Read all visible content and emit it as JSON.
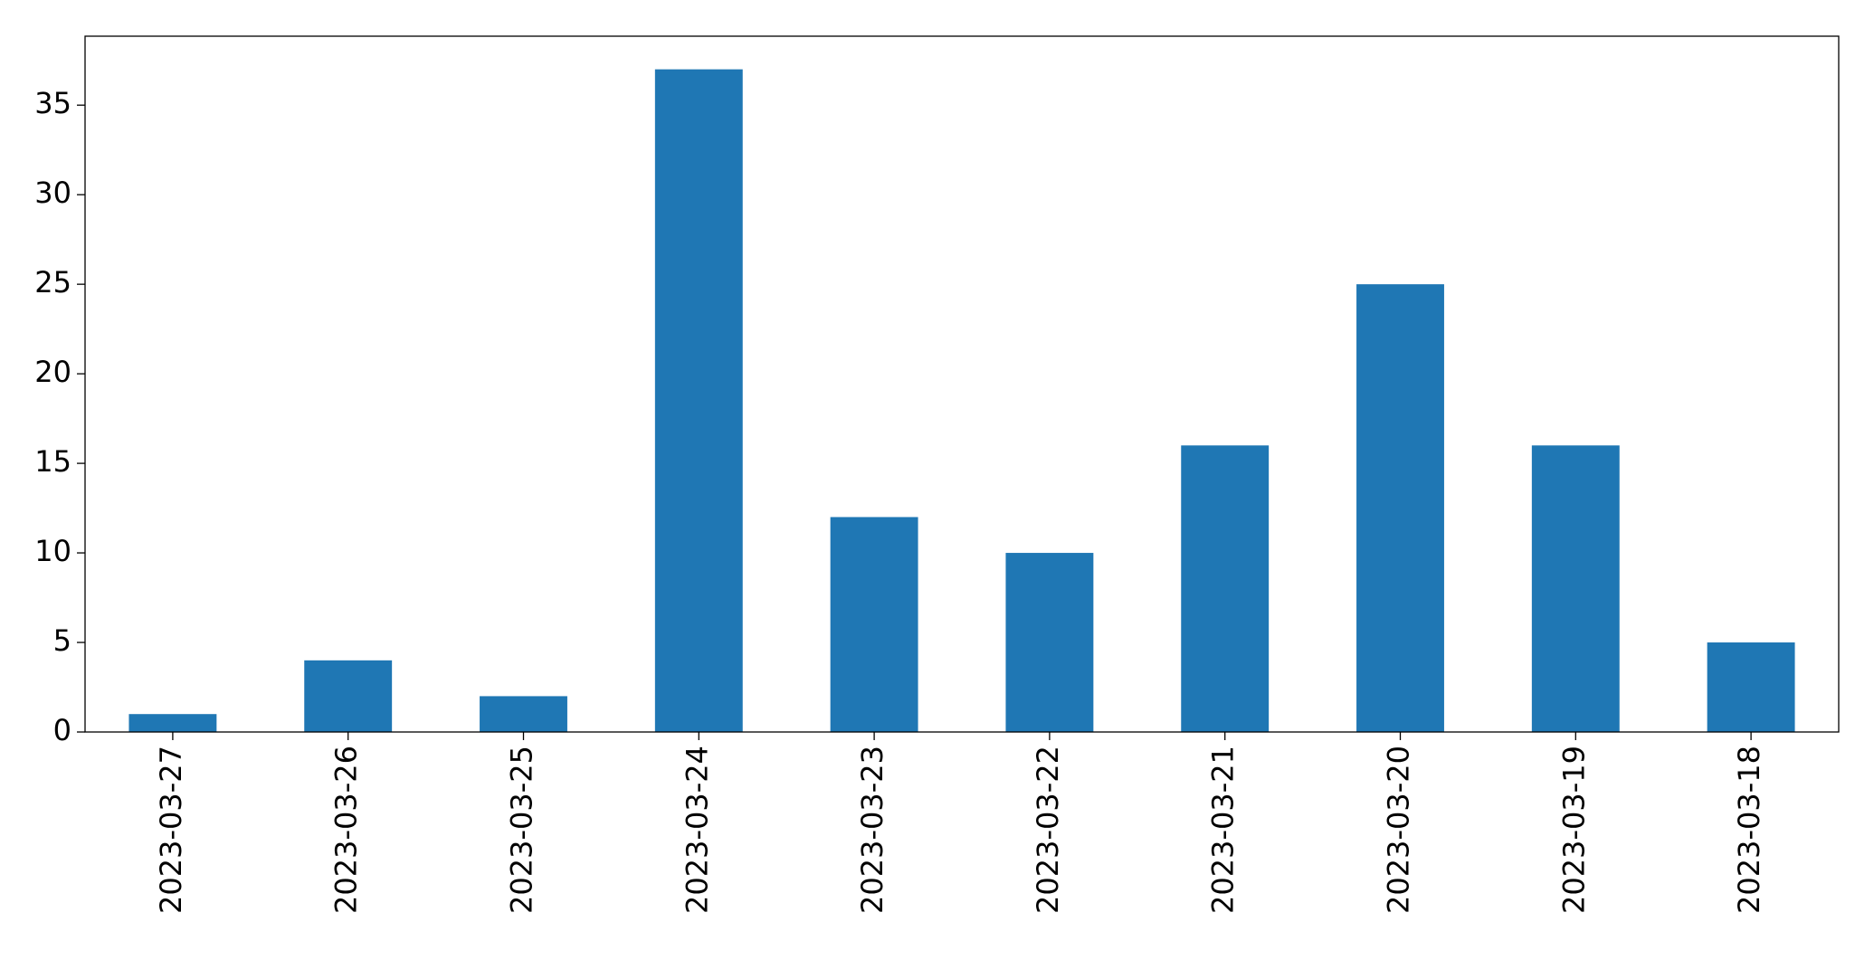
{
  "chart_data": {
    "type": "bar",
    "categories": [
      "2023-03-27",
      "2023-03-26",
      "2023-03-25",
      "2023-03-24",
      "2023-03-23",
      "2023-03-22",
      "2023-03-21",
      "2023-03-20",
      "2023-03-19",
      "2023-03-18"
    ],
    "values": [
      1,
      4,
      2,
      37,
      12,
      10,
      16,
      25,
      16,
      5
    ],
    "color": "#1f77b4",
    "ylim": [
      0,
      38.85
    ],
    "yticks": [
      0,
      5,
      10,
      15,
      20,
      25,
      30,
      35
    ],
    "grid": false
  }
}
